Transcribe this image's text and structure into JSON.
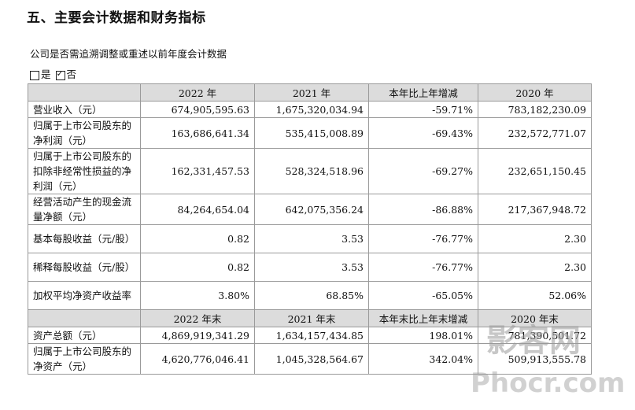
{
  "heading": "五、主要会计数据和财务指标",
  "subtext": "公司是否需追溯调整或重述以前年度会计数据",
  "options": {
    "yes": "是",
    "no": "否",
    "selected": "否"
  },
  "table": {
    "header1": [
      "",
      "2022 年",
      "2021 年",
      "本年比上年增减",
      "2020 年"
    ],
    "rows1": [
      {
        "label": "营业收入（元）",
        "values": [
          "674,905,595.63",
          "1,675,320,034.94",
          "-59.71%",
          "783,182,230.09"
        ]
      },
      {
        "label": "归属于上市公司股东的净利润（元）",
        "values": [
          "163,686,641.34",
          "535,415,008.89",
          "-69.43%",
          "232,572,771.07"
        ]
      },
      {
        "label": "归属于上市公司股东的扣除非经常性损益的净利润（元）",
        "values": [
          "162,331,457.53",
          "528,324,518.96",
          "-69.27%",
          "232,651,150.45"
        ]
      },
      {
        "label": "经营活动产生的现金流量净额（元）",
        "values": [
          "84,264,654.04",
          "642,075,356.24",
          "-86.88%",
          "217,367,948.72"
        ]
      },
      {
        "label": "基本每股收益（元/股）",
        "values": [
          "0.82",
          "3.53",
          "-76.77%",
          "2.30"
        ]
      },
      {
        "label": "稀释每股收益（元/股）",
        "values": [
          "0.82",
          "3.53",
          "-76.77%",
          "2.30"
        ]
      },
      {
        "label": "加权平均净资产收益率",
        "values": [
          "3.80%",
          "68.85%",
          "-65.05%",
          "52.06%"
        ]
      }
    ],
    "header2": [
      "",
      "2022 年末",
      "2021 年末",
      "本年末比上年末增减",
      "2020 年末"
    ],
    "rows2": [
      {
        "label": "资产总额（元）",
        "values": [
          "4,869,919,341.29",
          "1,634,157,434.85",
          "198.01%",
          "781,390,501.72"
        ]
      },
      {
        "label": "归属于上市公司股东的净资产（元）",
        "values": [
          "4,620,776,046.41",
          "1,045,328,564.67",
          "342.04%",
          "509,913,555.78"
        ]
      }
    ]
  },
  "watermark": {
    "line1": "影客网",
    "line2": "Phocr.com"
  }
}
